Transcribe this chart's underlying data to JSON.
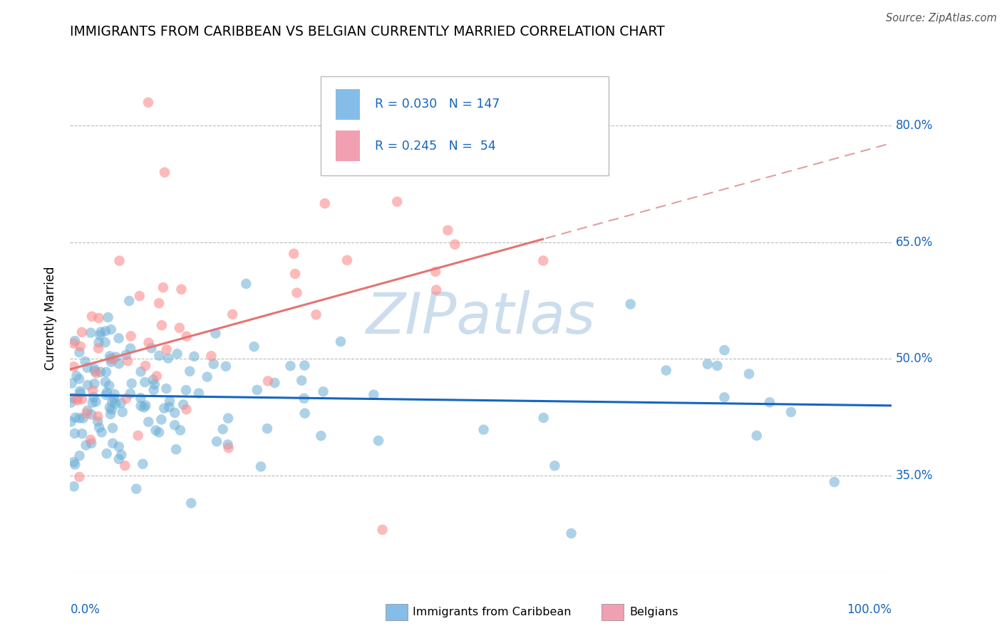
{
  "title": "IMMIGRANTS FROM CARIBBEAN VS BELGIAN CURRENTLY MARRIED CORRELATION CHART",
  "source": "Source: ZipAtlas.com",
  "ylabel": "Currently Married",
  "ytick_labels": [
    "35.0%",
    "50.0%",
    "65.0%",
    "80.0%"
  ],
  "ytick_values": [
    0.35,
    0.5,
    0.65,
    0.8
  ],
  "xlim": [
    0.0,
    1.0
  ],
  "ylim": [
    0.225,
    0.88
  ],
  "blue_color": "#6baed6",
  "pink_color": "#fc8d8d",
  "blue_line_color": "#1565c0",
  "pink_line_color": "#e57373",
  "pink_dash_color": "#e0a0a0",
  "grid_color": "#bbbbbb",
  "watermark_color": "#ccdded",
  "legend_text_color": "#1565c0",
  "title_color": "#000000",
  "axis_label_color": "#1565c0",
  "source_color": "#555555"
}
